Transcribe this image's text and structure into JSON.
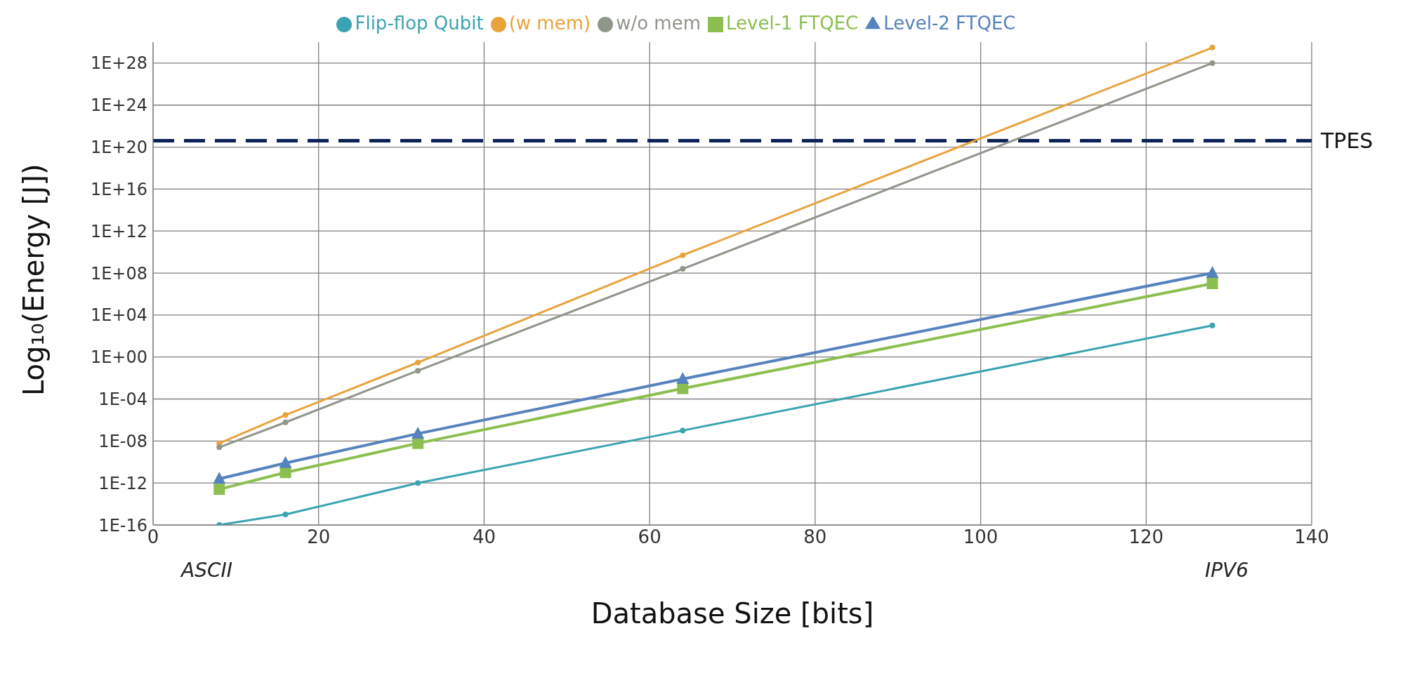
{
  "chart_data": {
    "type": "line",
    "xlabel": "Database Size [bits]",
    "ylabel": "Log₁₀(Energy [J])",
    "log": "y",
    "grid": true,
    "legend": "top",
    "x": [
      8,
      16,
      32,
      64,
      128
    ],
    "xlim": [
      0,
      140
    ],
    "xticks": [
      0,
      20,
      40,
      60,
      80,
      100,
      120,
      140
    ],
    "ylim": [
      1e-16,
      1e+30
    ],
    "yticks": [
      {
        "value": 1e-16,
        "label": "1E-16"
      },
      {
        "value": 1e-12,
        "label": "1E-12"
      },
      {
        "value": 1e-08,
        "label": "1E-08"
      },
      {
        "value": 0.0001,
        "label": "1E-04"
      },
      {
        "value": 1,
        "label": "1E+00"
      },
      {
        "value": 10000.0,
        "label": "1E+04"
      },
      {
        "value": 100000000.0,
        "label": "1E+08"
      },
      {
        "value": 1000000000000.0,
        "label": "1E+12"
      },
      {
        "value": 1e+16,
        "label": "1E+16"
      },
      {
        "value": 1e+20,
        "label": "1E+20"
      },
      {
        "value": 1e+24,
        "label": "1E+24"
      },
      {
        "value": 1e+28,
        "label": "1E+28"
      }
    ],
    "series": [
      {
        "name": "Flip-flop Qubit",
        "color": "#3aa4b0",
        "marker": "circle",
        "values": [
          1e-16,
          1e-15,
          1e-12,
          1e-07,
          1000.0
        ]
      },
      {
        "name": "(w mem)",
        "color": "#e8a33d",
        "marker": "circle",
        "values": [
          6e-09,
          3e-06,
          0.3,
          5000000000.0,
          3e+29
        ]
      },
      {
        "name": "w/o mem",
        "color": "#8f968a",
        "marker": "circle",
        "values": [
          2.5e-09,
          6e-07,
          0.05,
          250000000.0,
          1e+28
        ]
      },
      {
        "name": "Level-1 FTQEC",
        "color": "#8cbf4f",
        "marker": "square",
        "values": [
          2.5e-13,
          1e-11,
          6e-09,
          0.001,
          10000000.0
        ]
      },
      {
        "name": "Level-2 FTQEC",
        "color": "#5683bd",
        "marker": "triangle",
        "values": [
          2.5e-12,
          8e-11,
          5e-08,
          0.008,
          100000000.0
        ]
      }
    ],
    "ref_lines": [
      {
        "axis": "y",
        "value": 4e+20,
        "label": "TPES",
        "color": "#0d2357",
        "line_style": "dashed"
      }
    ],
    "annotations": [
      "ASCII",
      "IPV6"
    ]
  }
}
